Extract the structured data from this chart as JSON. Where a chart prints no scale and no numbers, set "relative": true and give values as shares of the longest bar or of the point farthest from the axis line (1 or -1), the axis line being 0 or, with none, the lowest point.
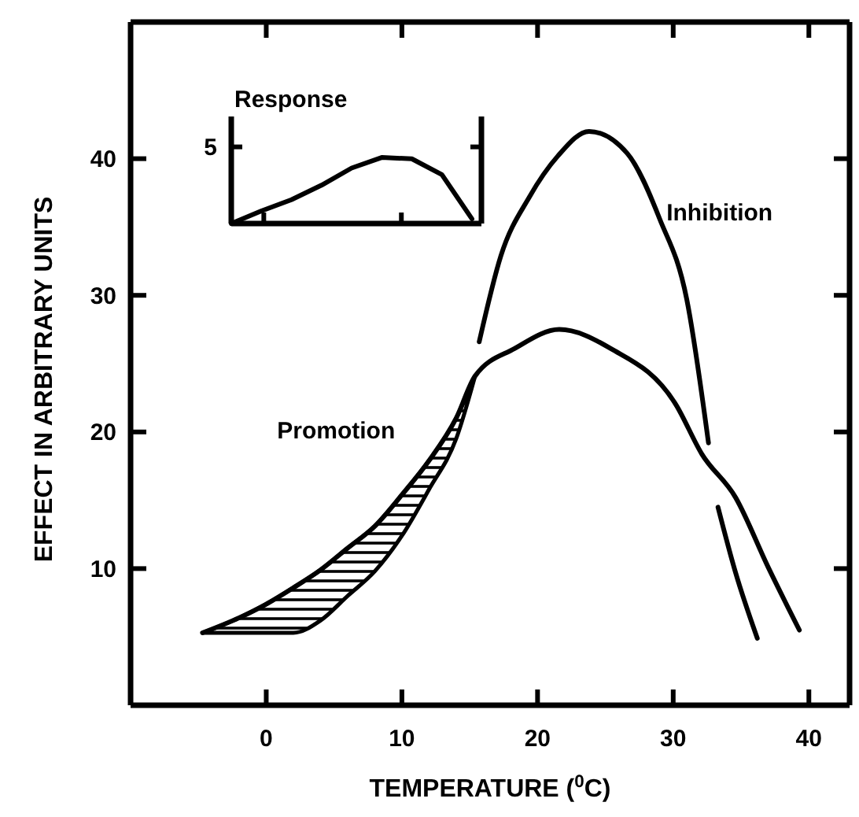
{
  "chart_data": [
    {
      "type": "line",
      "xlabel": "TEMPERATURE ($^{0}$C)",
      "ylabel": "EFFECT IN ARBITRARY UNITS",
      "xlim": [
        -10,
        43
      ],
      "ylim": [
        0,
        50
      ],
      "xticks": [
        0,
        10,
        20,
        30,
        40
      ],
      "yticks": [
        10,
        20,
        30,
        40
      ],
      "series": [
        {
          "name": "Inhibition",
          "color": "#000000",
          "x": [
            15.7,
            17.3,
            19.4,
            21.5,
            23.8,
            26.6,
            29.0,
            31.0,
            32.6,
            33.0,
            33.3,
            34.6,
            36.2
          ],
          "values": [
            26.6,
            32.9,
            37.2,
            40.2,
            42.0,
            40.4,
            35.6,
            29.7,
            19.2,
            null,
            14.5,
            9.7,
            4.9
          ]
        },
        {
          "name": "Promotion",
          "color": "#000000",
          "x": [
            -4.7,
            -2,
            0,
            2,
            4,
            6,
            8,
            10,
            12,
            14,
            15.4,
            18.3,
            21.6,
            25.4,
            30.2,
            32.1,
            34.6,
            37.0,
            39.3
          ],
          "values": [
            5.3,
            6.4,
            7.4,
            8.6,
            9.9,
            11.5,
            13.1,
            15.4,
            17.9,
            21.0,
            24.1,
            26.1,
            27.5,
            26.1,
            22.0,
            18.4,
            15.2,
            10.1,
            5.5
          ],
          "lower": [
            5.3,
            5.3,
            5.3,
            5.3,
            6.2,
            8.0,
            9.8,
            12.4,
            15.8,
            19.5,
            24.1,
            null,
            null,
            null,
            null,
            null,
            null,
            null,
            null
          ],
          "upper": [
            5.3,
            6.4,
            7.4,
            8.6,
            9.9,
            11.5,
            13.1,
            15.4,
            17.9,
            21.0,
            24.1,
            null,
            null,
            null,
            null,
            null,
            null,
            null,
            null
          ]
        }
      ]
    },
    {
      "type": "line",
      "title": "Response",
      "relative": true,
      "annotations": [
        "5"
      ],
      "categories": [
        null,
        null,
        null,
        null,
        null,
        null,
        null,
        null,
        null
      ],
      "series": [
        {
          "color": "#000000",
          "values": [
            0,
            0.19,
            0.36,
            0.58,
            0.84,
            1,
            0.98,
            0.74,
            0.07
          ]
        }
      ]
    }
  ]
}
